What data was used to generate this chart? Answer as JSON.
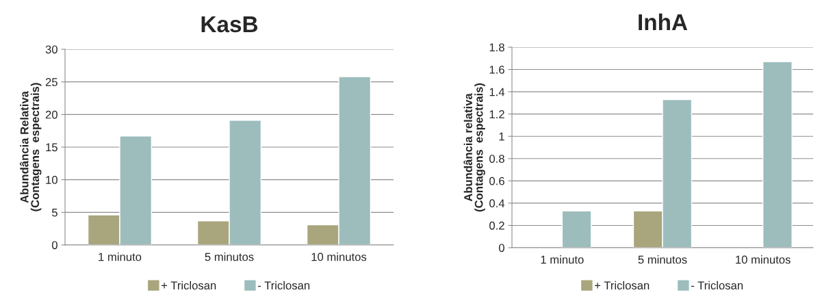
{
  "chart_data": [
    {
      "type": "bar",
      "title": "KasB",
      "ylabel": "Abundância Relativa\n(Contagens  espectrais)",
      "categories": [
        "1 minuto",
        "5 minutos",
        "10 minutos"
      ],
      "series": [
        {
          "name": "+ Triclosan",
          "color": "#a9a57c",
          "values": [
            4.6,
            3.7,
            3.1
          ]
        },
        {
          "name": "- Triclosan",
          "color": "#9dbdbd",
          "values": [
            16.7,
            19.1,
            25.8
          ]
        }
      ],
      "ylim": [
        0,
        30
      ],
      "yticks": [
        0,
        5,
        10,
        15,
        20,
        25,
        30
      ],
      "grid": "y",
      "legend": "bottom"
    },
    {
      "type": "bar",
      "title": "InhA",
      "ylabel": "Abundância relativa\n(Contagens  espectrais)",
      "categories": [
        "1 minuto",
        "5 minutos",
        "10 minutos"
      ],
      "series": [
        {
          "name": "+ Triclosan",
          "color": "#a9a57c",
          "values": [
            null,
            0.33,
            null
          ]
        },
        {
          "name": "- Triclosan",
          "color": "#9dbdbd",
          "values": [
            0.33,
            1.33,
            1.67
          ]
        }
      ],
      "ylim": [
        0,
        1.8
      ],
      "yticks": [
        0,
        0.2,
        0.4,
        0.6,
        0.8,
        1,
        1.2,
        1.4,
        1.6,
        1.8
      ],
      "grid": "y",
      "legend": "bottom"
    }
  ]
}
